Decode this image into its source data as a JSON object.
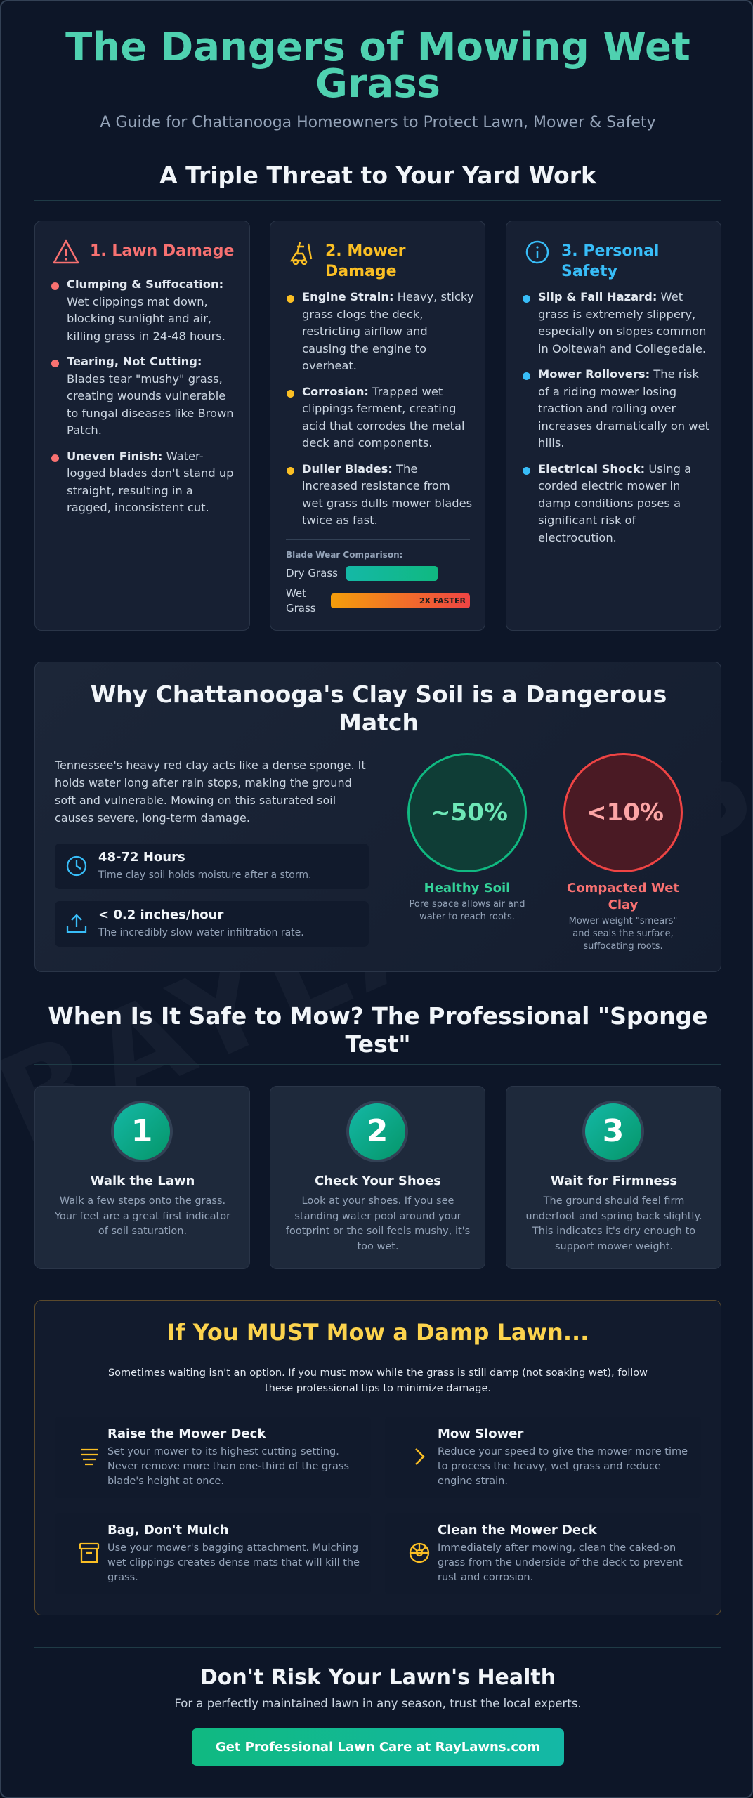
{
  "watermark": "RAYLAWNS",
  "header": {
    "title": "The Dangers of Mowing Wet Grass",
    "subtitle": "A Guide for Chattanooga Homeowners to Protect Lawn, Mower & Safety"
  },
  "threats": {
    "heading": "A Triple Threat to Your Yard Work",
    "cards": [
      {
        "title": "1. Lawn Damage",
        "items": [
          {
            "label": "Clumping & Suffocation:",
            "text": "Wet clippings mat down, blocking sunlight and air, killing grass in 24-48 hours."
          },
          {
            "label": "Tearing, Not Cutting:",
            "text": "Blades tear \"mushy\" grass, creating wounds vulnerable to fungal diseases like Brown Patch."
          },
          {
            "label": "Uneven Finish:",
            "text": "Water-logged blades don't stand up straight, resulting in a ragged, inconsistent cut."
          }
        ]
      },
      {
        "title": "2. Mower Damage",
        "items": [
          {
            "label": "Engine Strain:",
            "text": "Heavy, sticky grass clogs the deck, restricting airflow and causing the engine to overheat."
          },
          {
            "label": "Corrosion:",
            "text": "Trapped wet clippings ferment, creating acid that corrodes the metal deck and components."
          },
          {
            "label": "Duller Blades:",
            "text": "The increased resistance from wet grass dulls mower blades twice as fast."
          }
        ]
      },
      {
        "title": "3. Personal Safety",
        "items": [
          {
            "label": "Slip & Fall Hazard:",
            "text": "Wet grass is extremely slippery, especially on slopes common in Ooltewah and Collegedale."
          },
          {
            "label": "Mower Rollovers:",
            "text": "The risk of a riding mower losing traction and rolling over increases dramatically on wet hills."
          },
          {
            "label": "Electrical Shock:",
            "text": "Using a corded electric mower in damp conditions poses a significant risk of electrocution."
          }
        ]
      }
    ],
    "blade": {
      "heading": "Blade Wear Comparison:",
      "dry": "Dry Grass",
      "wet": "Wet Grass",
      "badge": "2X FASTER"
    }
  },
  "soil": {
    "heading": "Why Chattanooga's Clay Soil is a Dangerous Match",
    "text": "Tennessee's heavy red clay acts like a dense sponge. It holds water long after rain stops, making the ground soft and vulnerable. Mowing on this saturated soil causes severe, long-term damage.",
    "facts": [
      {
        "title": "48-72 Hours",
        "text": "Time clay soil holds moisture after a storm."
      },
      {
        "title": "< 0.2 inches/hour",
        "text": "The incredibly slow water infiltration rate."
      }
    ],
    "circles": [
      {
        "value": "~50%",
        "label": "Healthy Soil",
        "text": "Pore space allows air and water to reach roots."
      },
      {
        "value": "<10%",
        "label": "Compacted Wet Clay",
        "text": "Mower weight \"smears\" and seals the surface, suffocating roots."
      }
    ]
  },
  "sponge": {
    "heading": "When Is It Safe to Mow? The Professional \"Sponge Test\"",
    "steps": [
      {
        "number": "1",
        "title": "Walk the Lawn",
        "text": "Walk a few steps onto the grass. Your feet are a great first indicator of soil saturation."
      },
      {
        "number": "2",
        "title": "Check Your Shoes",
        "text": "Look at your shoes. If you see standing water pool around your footprint or the soil feels mushy, it's too wet."
      },
      {
        "number": "3",
        "title": "Wait for Firmness",
        "text": "The ground should feel firm underfoot and spring back slightly. This indicates it's dry enough to support mower weight."
      }
    ]
  },
  "damp": {
    "heading": "If You MUST Mow a Damp Lawn...",
    "intro": "Sometimes waiting isn't an option. If you must mow while the grass is still damp (not soaking wet), follow these professional tips to minimize damage.",
    "tips": [
      {
        "title": "Raise the Mower Deck",
        "text": "Set your mower to its highest cutting setting. Never remove more than one-third of the grass blade's height at once."
      },
      {
        "title": "Mow Slower",
        "text": "Reduce your speed to give the mower more time to process the heavy, wet grass and reduce engine strain."
      },
      {
        "title": "Bag, Don't Mulch",
        "text": "Use your mower's bagging attachment. Mulching wet clippings creates dense mats that will kill the grass."
      },
      {
        "title": "Clean the Mower Deck",
        "text": "Immediately after mowing, clean the caked-on grass from the underside of the deck to prevent rust and corrosion."
      }
    ]
  },
  "footer": {
    "heading": "Don't Risk Your Lawn's Health",
    "text": "For a perfectly maintained lawn in any season, trust the local experts.",
    "button": "Get Professional Lawn Care at RayLawns.com"
  }
}
